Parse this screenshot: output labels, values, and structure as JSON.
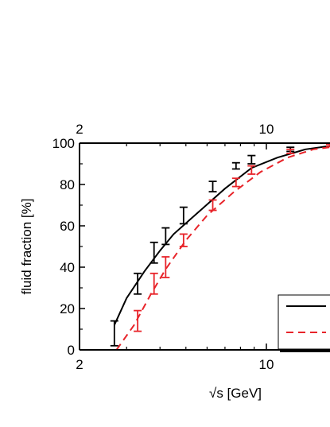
{
  "chart_data": {
    "type": "line",
    "xlabel": "√s [GeV]",
    "ylabel": "fluid fraction [%]",
    "x_scale": "log",
    "xlim": [
      2,
      20
    ],
    "ylim": [
      0,
      100
    ],
    "x_ticks_major": [
      {
        "value": 2,
        "label": "2"
      },
      {
        "value": 10,
        "label": "10"
      }
    ],
    "y_ticks": [
      {
        "value": 0,
        "label": "0"
      },
      {
        "value": 20,
        "label": "20"
      },
      {
        "value": 40,
        "label": "40"
      },
      {
        "value": 60,
        "label": "60"
      },
      {
        "value": 80,
        "label": "80"
      },
      {
        "value": 100,
        "label": "100"
      }
    ],
    "grid": false,
    "legend": "bottom-right, entries cut off at image edge",
    "series": [
      {
        "color": "#000000",
        "style": "solid",
        "curve": [
          [
            2.7,
            12
          ],
          [
            3.0,
            25
          ],
          [
            3.5,
            38
          ],
          [
            4.0,
            48
          ],
          [
            4.5,
            56
          ],
          [
            5.5,
            66
          ],
          [
            7,
            78
          ],
          [
            8.8,
            88
          ],
          [
            11,
            93
          ],
          [
            14,
            97
          ],
          [
            17,
            98.5
          ],
          [
            20,
            99
          ]
        ],
        "points": [
          {
            "x": 2.7,
            "y": 8,
            "err": 6
          },
          {
            "x": 3.3,
            "y": 32,
            "err": 5
          },
          {
            "x": 3.8,
            "y": 47,
            "err": 5
          },
          {
            "x": 4.2,
            "y": 55,
            "err": 4
          },
          {
            "x": 4.9,
            "y": 65,
            "err": 4
          },
          {
            "x": 6.3,
            "y": 79,
            "err": 2.5
          },
          {
            "x": 7.7,
            "y": 89,
            "err": 1.5
          },
          {
            "x": 8.8,
            "y": 92,
            "err": 2
          },
          {
            "x": 12.3,
            "y": 97,
            "err": 1
          },
          {
            "x": 17.3,
            "y": 99,
            "err": 0.5
          }
        ]
      },
      {
        "color": "#e8242a",
        "style": "dashed",
        "curve": [
          [
            2.75,
            0
          ],
          [
            3.2,
            12
          ],
          [
            3.7,
            27
          ],
          [
            4.2,
            39
          ],
          [
            5.0,
            53
          ],
          [
            6.0,
            65
          ],
          [
            7.5,
            76
          ],
          [
            9.5,
            86
          ],
          [
            12,
            93
          ],
          [
            15,
            97
          ],
          [
            20,
            99
          ]
        ],
        "points": [
          {
            "x": 3.3,
            "y": 14,
            "err": 5
          },
          {
            "x": 3.8,
            "y": 32,
            "err": 5
          },
          {
            "x": 4.2,
            "y": 40,
            "err": 5
          },
          {
            "x": 4.9,
            "y": 53,
            "err": 3
          },
          {
            "x": 6.3,
            "y": 70,
            "err": 2.5
          },
          {
            "x": 7.7,
            "y": 81,
            "err": 2
          },
          {
            "x": 8.8,
            "y": 87,
            "err": 2
          },
          {
            "x": 12.3,
            "y": 96,
            "err": 1
          },
          {
            "x": 17.3,
            "y": 99,
            "err": 0.5
          }
        ]
      }
    ]
  }
}
